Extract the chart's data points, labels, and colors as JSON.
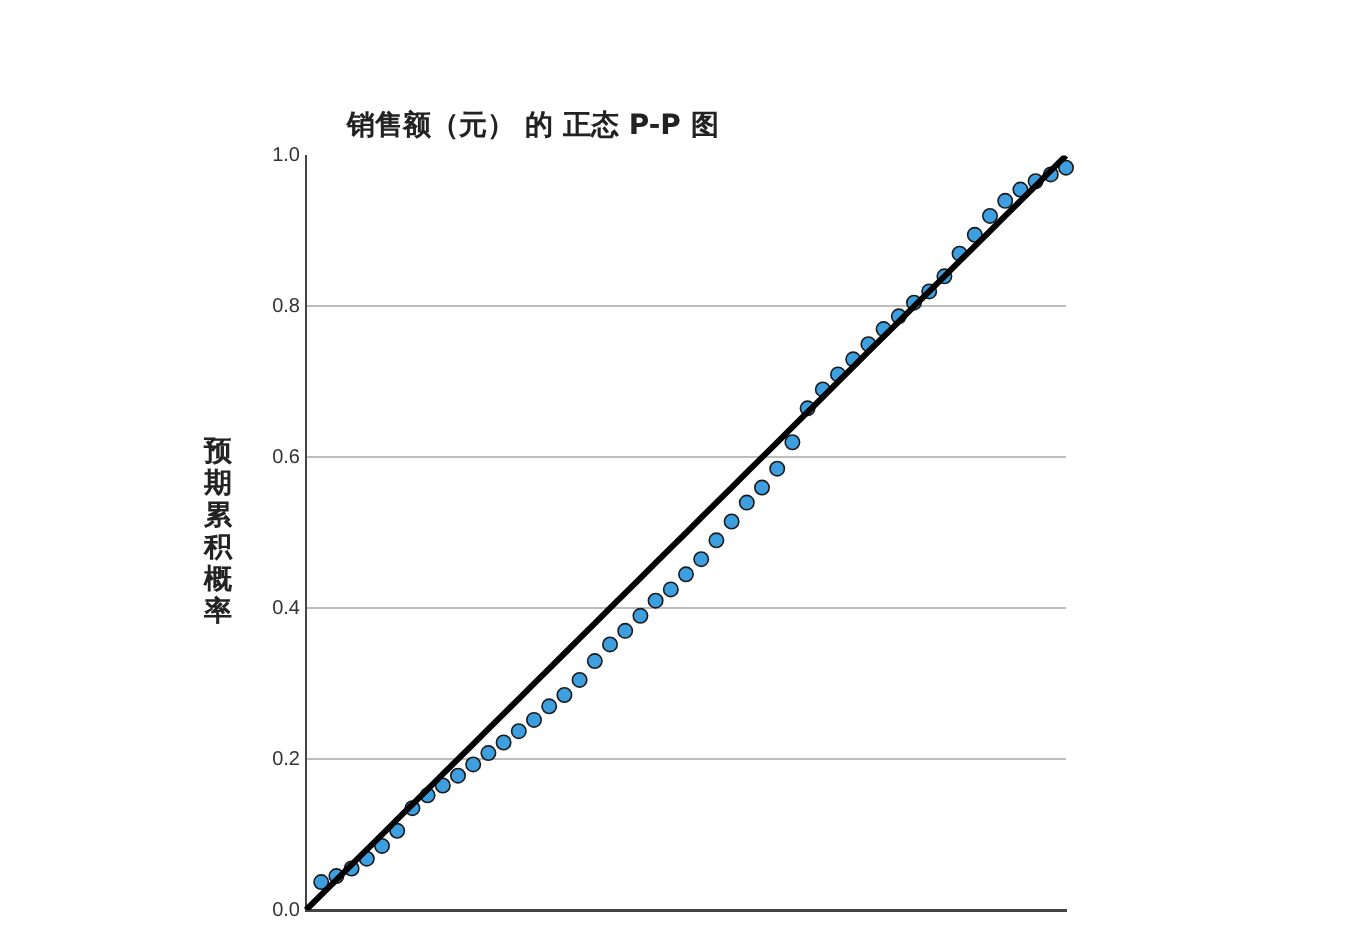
{
  "chart_data": {
    "type": "scatter",
    "title": "销售额（元） 的 正态 P-P 图",
    "ylabel": "预期累积概率",
    "categories": [
      null,
      null,
      null,
      null,
      null,
      null,
      null,
      null,
      null,
      null,
      null,
      null,
      null,
      null,
      null,
      null,
      null,
      null,
      null,
      null,
      null,
      null,
      null,
      null,
      null,
      null,
      null,
      null,
      null,
      null,
      null,
      null,
      null,
      null,
      null,
      null,
      null,
      null,
      null,
      null,
      null,
      null,
      null,
      null,
      null,
      null,
      null,
      null,
      null,
      null,
      null
    ],
    "ylim": [
      0,
      1
    ],
    "yticks": [
      {
        "value": 0,
        "label": "0.0"
      },
      {
        "value": 0.2,
        "label": "0.2"
      },
      {
        "value": 0.4,
        "label": "0.4"
      },
      {
        "value": 0.6,
        "label": "0.6"
      },
      {
        "value": 0.8,
        "label": "0.8"
      },
      {
        "value": 1,
        "label": "1.0"
      }
    ],
    "tick_labels": "y",
    "grid": "y",
    "legend": false,
    "marker": "circle",
    "series": [
      {
        "color": "#3d9fe0",
        "values": [
          null,
          0.037,
          0.045,
          0.055,
          0.068,
          0.085,
          0.105,
          0.135,
          0.152,
          0.165,
          0.178,
          0.193,
          0.208,
          0.222,
          0.237,
          0.252,
          0.27,
          0.285,
          0.305,
          0.33,
          0.352,
          0.37,
          0.39,
          0.41,
          0.425,
          0.445,
          0.465,
          0.49,
          0.515,
          0.54,
          0.56,
          0.585,
          0.62,
          0.665,
          0.69,
          0.71,
          0.73,
          0.75,
          0.77,
          0.787,
          0.805,
          0.82,
          0.84,
          0.87,
          0.895,
          0.92,
          0.94,
          0.955,
          0.966,
          0.975,
          0.984
        ]
      },
      {
        "type": "line",
        "color": "#000000",
        "marker": "none",
        "values": [
          0,
          0.02,
          0.04,
          0.06,
          0.08,
          0.1,
          0.12,
          0.14,
          0.16,
          0.18,
          0.2,
          0.22,
          0.24,
          0.26,
          0.28,
          0.3,
          0.32,
          0.34,
          0.36,
          0.38,
          0.4,
          0.42,
          0.44,
          0.46,
          0.48,
          0.5,
          0.52,
          0.54,
          0.56,
          0.58,
          0.6,
          0.62,
          0.64,
          0.66,
          0.68,
          0.7,
          0.72,
          0.74,
          0.76,
          0.78,
          0.8,
          0.82,
          0.84,
          0.86,
          0.88,
          0.9,
          0.92,
          0.94,
          0.96,
          0.98,
          1
        ]
      }
    ]
  }
}
